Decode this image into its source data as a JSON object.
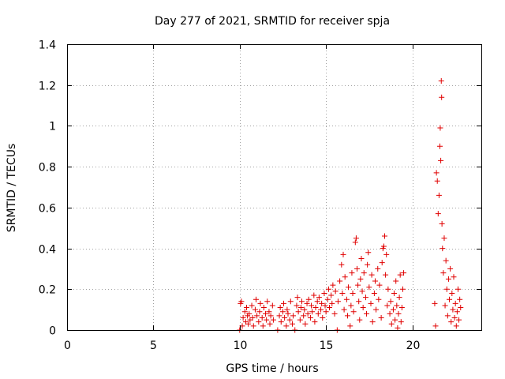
{
  "chart_data": {
    "type": "scatter",
    "title": "Day 277 of 2021, SRMTID for receiver spja",
    "xlabel": "GPS time / hours",
    "ylabel": "SRMTID / TECUs",
    "xlim": [
      0,
      24
    ],
    "ylim": [
      0,
      1.4
    ],
    "x_ticks": [
      0,
      5,
      10,
      15,
      20
    ],
    "x_tick_labels": [
      "0",
      "5",
      "10",
      "15",
      "20"
    ],
    "y_ticks": [
      0,
      0.2,
      0.4,
      0.6,
      0.8,
      1.0,
      1.2,
      1.4
    ],
    "y_tick_labels": [
      "0",
      "0.2",
      "0.4",
      "0.6",
      "0.8",
      "1",
      "1.2",
      "1.4"
    ],
    "grid": true,
    "marker": "+",
    "series_color": "#e00000",
    "series": [
      {
        "name": "SRMTID",
        "points": [
          [
            10.0,
            0.0
          ],
          [
            10.05,
            0.13
          ],
          [
            10.1,
            0.14
          ],
          [
            10.15,
            0.02
          ],
          [
            10.2,
            0.06
          ],
          [
            10.3,
            0.09
          ],
          [
            10.35,
            0.04
          ],
          [
            10.4,
            0.11
          ],
          [
            10.45,
            0.07
          ],
          [
            10.5,
            0.03
          ],
          [
            10.55,
            0.08
          ],
          [
            10.6,
            0.05
          ],
          [
            10.7,
            0.12
          ],
          [
            10.75,
            0.06
          ],
          [
            10.8,
            0.02
          ],
          [
            10.9,
            0.1
          ],
          [
            10.95,
            0.15
          ],
          [
            11.0,
            0.07
          ],
          [
            11.1,
            0.04
          ],
          [
            11.15,
            0.09
          ],
          [
            11.2,
            0.13
          ],
          [
            11.3,
            0.06
          ],
          [
            11.35,
            0.02
          ],
          [
            11.4,
            0.11
          ],
          [
            11.5,
            0.08
          ],
          [
            11.55,
            0.05
          ],
          [
            11.6,
            0.14
          ],
          [
            11.7,
            0.09
          ],
          [
            11.75,
            0.03
          ],
          [
            11.8,
            0.07
          ],
          [
            11.9,
            0.12
          ],
          [
            11.95,
            0.05
          ],
          [
            12.2,
            0.0
          ],
          [
            12.3,
            0.07
          ],
          [
            12.35,
            0.11
          ],
          [
            12.4,
            0.04
          ],
          [
            12.5,
            0.09
          ],
          [
            12.55,
            0.13
          ],
          [
            12.6,
            0.06
          ],
          [
            12.7,
            0.02
          ],
          [
            12.75,
            0.1
          ],
          [
            12.8,
            0.08
          ],
          [
            12.9,
            0.05
          ],
          [
            12.95,
            0.14
          ],
          [
            13.05,
            0.03
          ],
          [
            13.1,
            0.07
          ],
          [
            13.2,
            0.0
          ],
          [
            13.3,
            0.12
          ],
          [
            13.35,
            0.16
          ],
          [
            13.4,
            0.09
          ],
          [
            13.5,
            0.05
          ],
          [
            13.55,
            0.11
          ],
          [
            13.6,
            0.14
          ],
          [
            13.7,
            0.07
          ],
          [
            13.75,
            0.1
          ],
          [
            13.8,
            0.03
          ],
          [
            13.9,
            0.13
          ],
          [
            13.95,
            0.08
          ],
          [
            14.0,
            0.15
          ],
          [
            14.1,
            0.06
          ],
          [
            14.15,
            0.12
          ],
          [
            14.2,
            0.09
          ],
          [
            14.3,
            0.17
          ],
          [
            14.35,
            0.04
          ],
          [
            14.4,
            0.11
          ],
          [
            14.5,
            0.14
          ],
          [
            14.55,
            0.08
          ],
          [
            14.6,
            0.16
          ],
          [
            14.7,
            0.1
          ],
          [
            14.75,
            0.13
          ],
          [
            14.8,
            0.06
          ],
          [
            14.9,
            0.18
          ],
          [
            14.95,
            0.12
          ],
          [
            15.0,
            0.09
          ],
          [
            15.1,
            0.15
          ],
          [
            15.15,
            0.2
          ],
          [
            15.2,
            0.11
          ],
          [
            15.3,
            0.17
          ],
          [
            15.35,
            0.13
          ],
          [
            15.4,
            0.22
          ],
          [
            15.5,
            0.08
          ],
          [
            15.55,
            0.19
          ],
          [
            15.65,
            0.0
          ],
          [
            15.7,
            0.14
          ],
          [
            15.8,
            0.24
          ],
          [
            15.9,
            0.32
          ],
          [
            15.95,
            0.18
          ],
          [
            16.0,
            0.37
          ],
          [
            16.05,
            0.1
          ],
          [
            16.1,
            0.26
          ],
          [
            16.2,
            0.15
          ],
          [
            16.25,
            0.07
          ],
          [
            16.3,
            0.21
          ],
          [
            16.4,
            0.02
          ],
          [
            16.45,
            0.12
          ],
          [
            16.5,
            0.28
          ],
          [
            16.55,
            0.18
          ],
          [
            16.6,
            0.09
          ],
          [
            16.7,
            0.43
          ],
          [
            16.75,
            0.45
          ],
          [
            16.8,
            0.3
          ],
          [
            16.85,
            0.22
          ],
          [
            16.9,
            0.14
          ],
          [
            16.95,
            0.05
          ],
          [
            17.0,
            0.25
          ],
          [
            17.05,
            0.35
          ],
          [
            17.1,
            0.19
          ],
          [
            17.15,
            0.11
          ],
          [
            17.2,
            0.28
          ],
          [
            17.3,
            0.16
          ],
          [
            17.35,
            0.08
          ],
          [
            17.4,
            0.32
          ],
          [
            17.45,
            0.38
          ],
          [
            17.5,
            0.21
          ],
          [
            17.6,
            0.13
          ],
          [
            17.65,
            0.27
          ],
          [
            17.7,
            0.04
          ],
          [
            17.8,
            0.18
          ],
          [
            17.85,
            0.24
          ],
          [
            17.9,
            0.1
          ],
          [
            18.0,
            0.3
          ],
          [
            18.05,
            0.15
          ],
          [
            18.1,
            0.22
          ],
          [
            18.2,
            0.06
          ],
          [
            18.25,
            0.33
          ],
          [
            18.3,
            0.4
          ],
          [
            18.35,
            0.41
          ],
          [
            18.4,
            0.46
          ],
          [
            18.45,
            0.27
          ],
          [
            18.5,
            0.37
          ],
          [
            18.55,
            0.12
          ],
          [
            18.6,
            0.2
          ],
          [
            18.7,
            0.08
          ],
          [
            18.75,
            0.14
          ],
          [
            18.8,
            0.03
          ],
          [
            18.9,
            0.1
          ],
          [
            18.95,
            0.18
          ],
          [
            19.0,
            0.05
          ],
          [
            19.05,
            0.24
          ],
          [
            19.1,
            0.12
          ],
          [
            19.15,
            0.01
          ],
          [
            19.2,
            0.08
          ],
          [
            19.25,
            0.16
          ],
          [
            19.3,
            0.27
          ],
          [
            19.35,
            0.04
          ],
          [
            19.4,
            0.11
          ],
          [
            19.45,
            0.2
          ],
          [
            19.5,
            0.28
          ],
          [
            21.3,
            0.13
          ],
          [
            21.35,
            0.02
          ],
          [
            21.4,
            0.77
          ],
          [
            21.45,
            0.73
          ],
          [
            21.5,
            0.57
          ],
          [
            21.55,
            0.66
          ],
          [
            21.6,
            0.9
          ],
          [
            21.62,
            0.99
          ],
          [
            21.65,
            0.83
          ],
          [
            21.68,
            1.22
          ],
          [
            21.7,
            1.14
          ],
          [
            21.72,
            0.52
          ],
          [
            21.75,
            0.4
          ],
          [
            21.8,
            0.28
          ],
          [
            21.85,
            0.45
          ],
          [
            21.9,
            0.12
          ],
          [
            21.95,
            0.34
          ],
          [
            22.0,
            0.2
          ],
          [
            22.05,
            0.07
          ],
          [
            22.1,
            0.25
          ],
          [
            22.15,
            0.15
          ],
          [
            22.2,
            0.3
          ],
          [
            22.25,
            0.04
          ],
          [
            22.3,
            0.18
          ],
          [
            22.35,
            0.1
          ],
          [
            22.4,
            0.26
          ],
          [
            22.45,
            0.06
          ],
          [
            22.5,
            0.13
          ],
          [
            22.55,
            0.02
          ],
          [
            22.6,
            0.09
          ],
          [
            22.65,
            0.2
          ],
          [
            22.7,
            0.05
          ],
          [
            22.75,
            0.15
          ],
          [
            22.8,
            0.11
          ]
        ]
      }
    ]
  }
}
